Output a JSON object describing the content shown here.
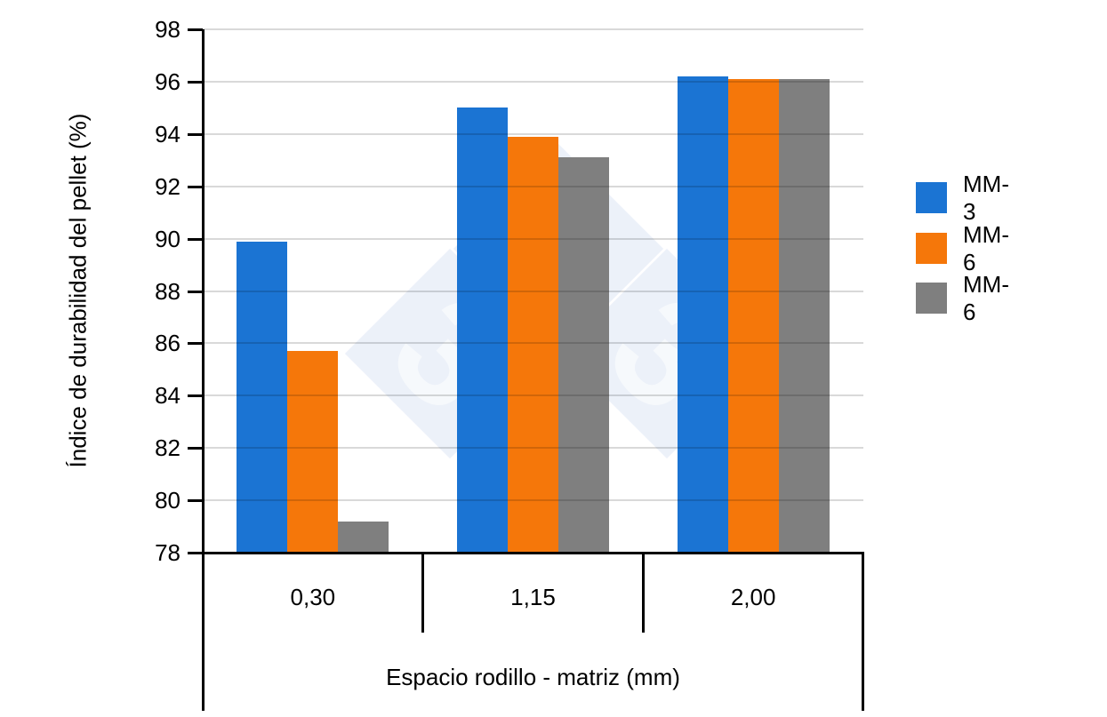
{
  "chart_data": {
    "type": "bar",
    "title": "",
    "categories": [
      "0,30",
      "1,15",
      "2,00"
    ],
    "series": [
      {
        "name": "MM-3",
        "color": "#1B74D3",
        "values": [
          89.9,
          95.0,
          96.2
        ]
      },
      {
        "name": "MM-6",
        "color": "#F5770A",
        "values": [
          85.7,
          93.9,
          96.1
        ]
      },
      {
        "name": "MM-6",
        "color": "#7F7F7F",
        "values": [
          79.2,
          93.1,
          96.1
        ]
      }
    ],
    "xlabel": "Espacio rodillo - matriz (mm)",
    "ylabel": "Índice de durabilidad del pellet (%)",
    "ylim": [
      78,
      98
    ],
    "ytick_step": 2,
    "grid": true,
    "legend_position": "right",
    "axis_color": "#000000",
    "gridline_color": "#D9D9D9",
    "background_color": "#FFFFFF"
  },
  "watermark": {
    "glyph": "3",
    "diamond_fill": "rgba(120,155,215,0.14)",
    "glyph_color": "rgba(255,255,255,0.55)"
  }
}
